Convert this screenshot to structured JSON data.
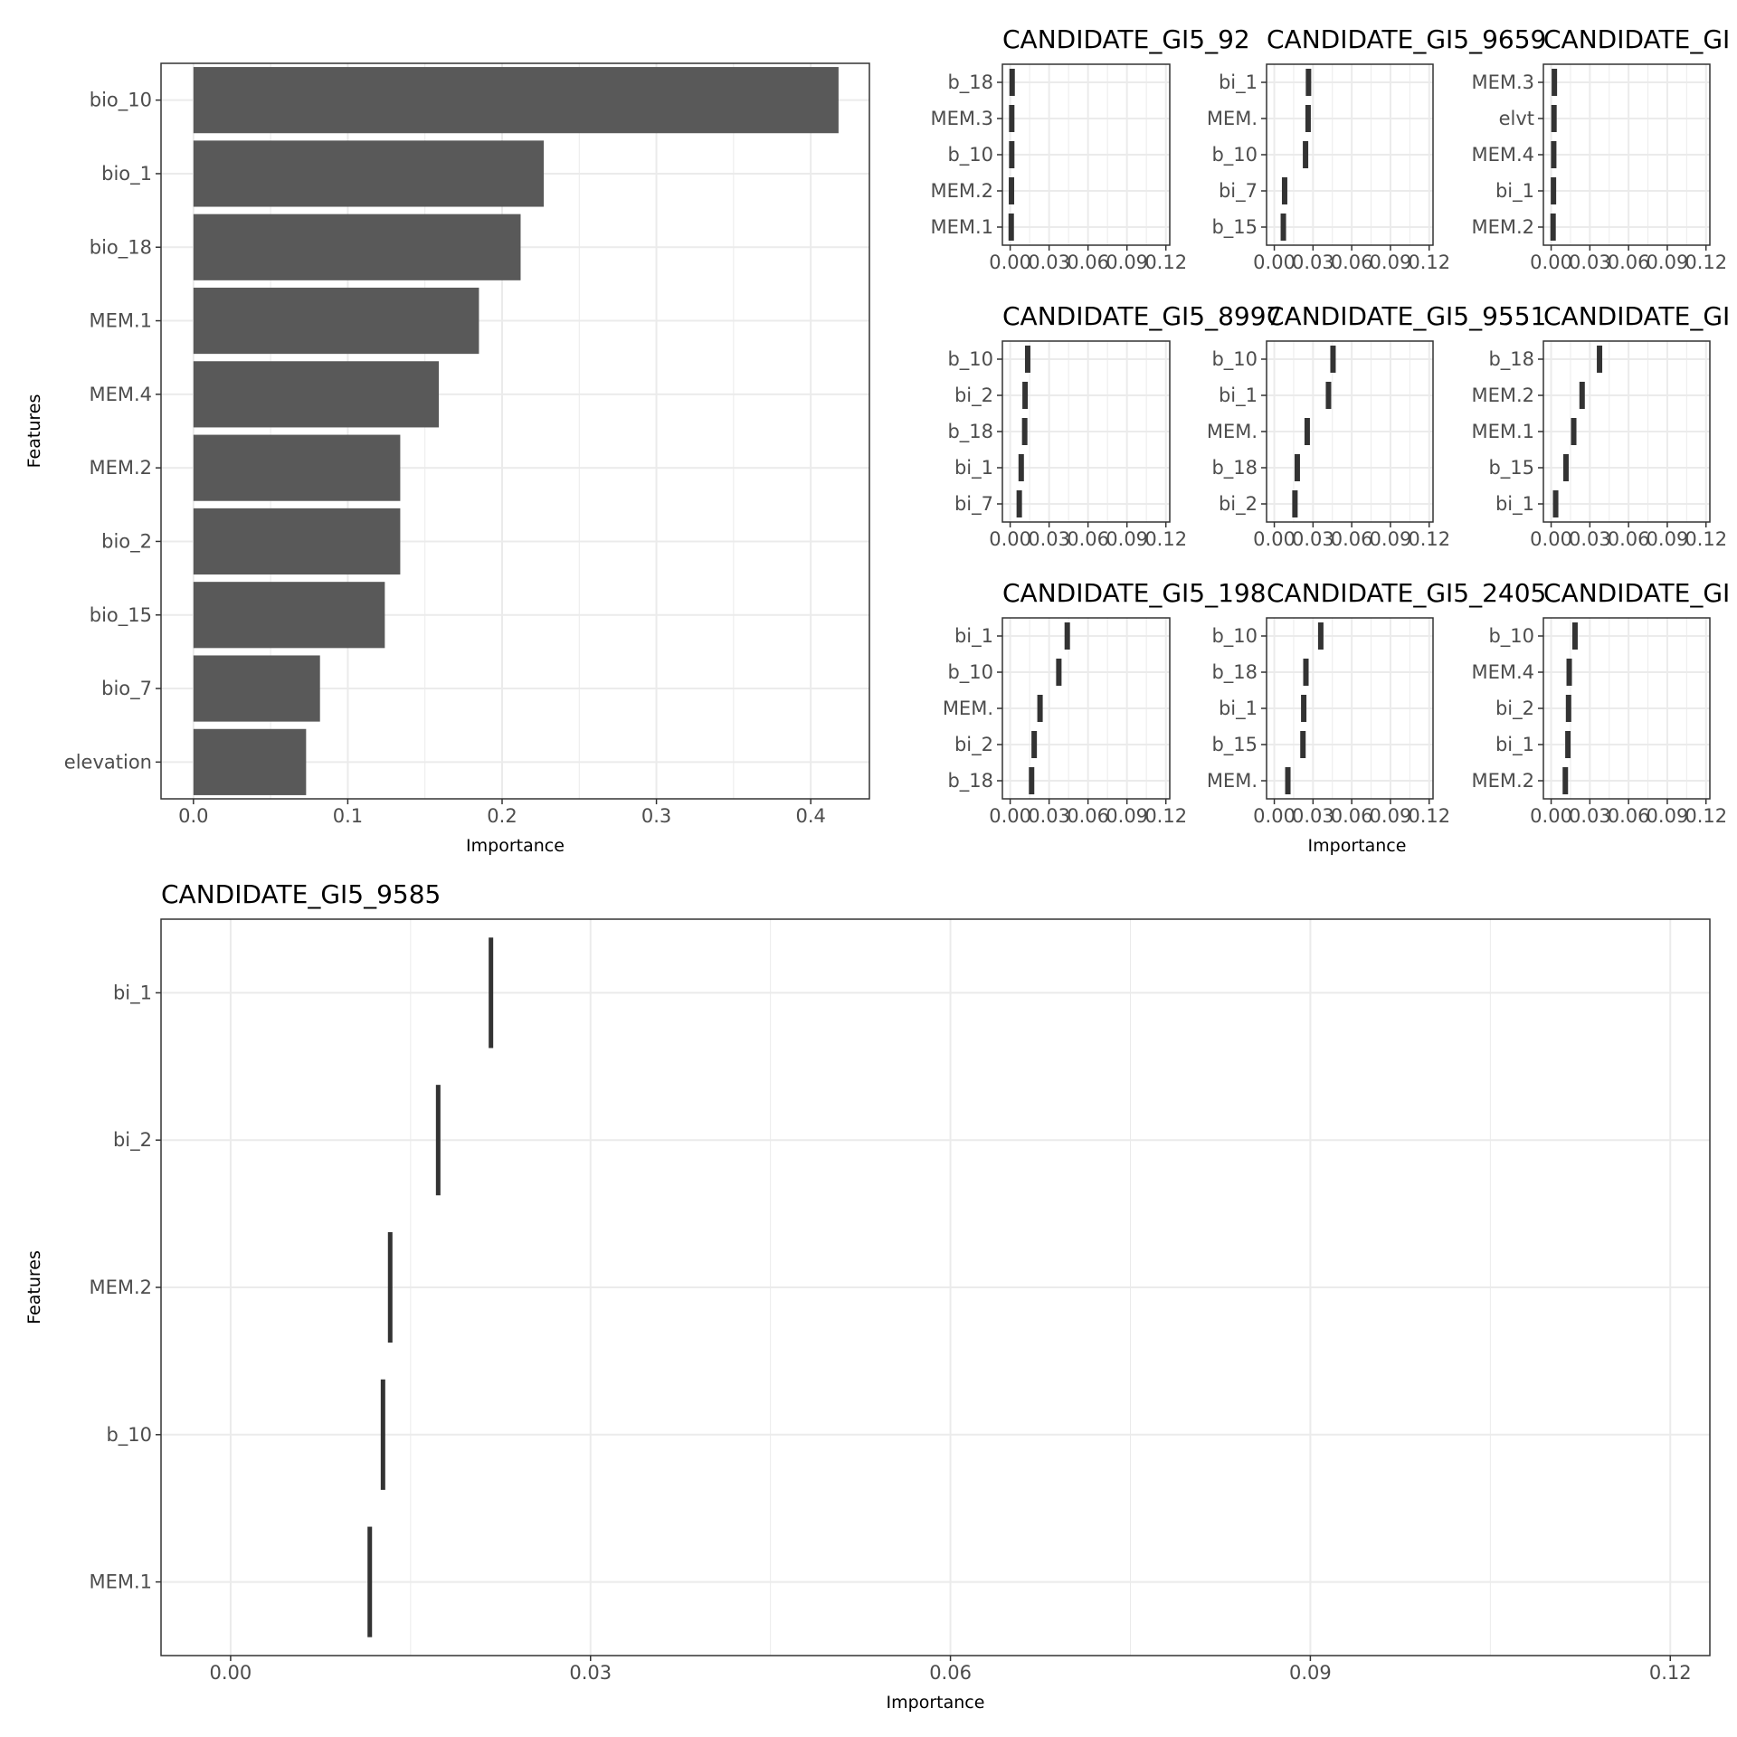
{
  "colors": {
    "bar": "#595959",
    "segment": "#333333",
    "grid": "#ebebeb",
    "border": "#333333",
    "tick_text": "#4d4d4d",
    "title_text": "#000000"
  },
  "chart_data": [
    {
      "type": "bar",
      "orientation": "horizontal",
      "title": "",
      "xlabel": "Importance",
      "ylabel": "Features",
      "xlim": [
        0,
        0.4
      ],
      "xticks": [
        "0.0",
        "0.1",
        "0.2",
        "0.3",
        "0.4"
      ],
      "categories": [
        "bio_10",
        "bio_1",
        "bio_18",
        "MEM.1",
        "MEM.4",
        "MEM.2",
        "bio_2",
        "bio_15",
        "bio_7",
        "elevation"
      ],
      "values": [
        0.418,
        0.227,
        0.212,
        0.185,
        0.159,
        0.134,
        0.134,
        0.124,
        0.082,
        0.073
      ],
      "grid": true
    },
    {
      "type": "bar",
      "orientation": "horizontal",
      "title": "CANDIDATE_GI5_92",
      "xlabel": "",
      "ylabel": "",
      "xlim": [
        0,
        0.12
      ],
      "xticks": [
        "0.00",
        "0.03",
        "0.06",
        "0.09",
        "0.12"
      ],
      "categories": [
        "b_18",
        "MEM.3",
        "b_10",
        "MEM.2",
        "MEM.1"
      ],
      "values": [
        0.0015,
        0.0012,
        0.0012,
        0.001,
        0.0008
      ],
      "grid": true
    },
    {
      "type": "bar",
      "orientation": "horizontal",
      "title": "CANDIDATE_GI5_9659",
      "xlabel": "",
      "ylabel": "",
      "xlim": [
        0,
        0.12
      ],
      "xticks": [
        "0.00",
        "0.03",
        "0.06",
        "0.09",
        "0.12"
      ],
      "categories": [
        "bi_1",
        "MEM.",
        "b_10",
        "bi_7",
        "b_15"
      ],
      "values": [
        0.0265,
        0.0262,
        0.0242,
        0.008,
        0.007
      ],
      "grid": true
    },
    {
      "type": "bar",
      "orientation": "horizontal",
      "title": "CANDIDATE_GI",
      "xlabel": "",
      "ylabel": "",
      "xlim": [
        0,
        0.12
      ],
      "xticks": [
        "0.00",
        "0.03",
        "0.06",
        "0.09",
        "0.12"
      ],
      "categories": [
        "MEM.3",
        "elvt",
        "MEM.4",
        "bi_1",
        "MEM.2"
      ],
      "values": [
        0.0025,
        0.0022,
        0.002,
        0.0018,
        0.0015
      ],
      "grid": true
    },
    {
      "type": "bar",
      "orientation": "horizontal",
      "title": "CANDIDATE_GI5_8997",
      "xlabel": "",
      "ylabel": "",
      "xlim": [
        0,
        0.12
      ],
      "xticks": [
        "0.00",
        "0.03",
        "0.06",
        "0.09",
        "0.12"
      ],
      "categories": [
        "b_10",
        "bi_2",
        "b_18",
        "bi_1",
        "bi_7"
      ],
      "values": [
        0.0135,
        0.0115,
        0.0112,
        0.0085,
        0.007
      ],
      "grid": true
    },
    {
      "type": "bar",
      "orientation": "horizontal",
      "title": "CANDIDATE_GI5_9551",
      "xlabel": "",
      "ylabel": "",
      "xlim": [
        0,
        0.12
      ],
      "xticks": [
        "0.00",
        "0.03",
        "0.06",
        "0.09",
        "0.12"
      ],
      "categories": [
        "b_10",
        "bi_1",
        "MEM.",
        "b_18",
        "bi_2"
      ],
      "values": [
        0.0455,
        0.042,
        0.0255,
        0.0178,
        0.016
      ],
      "grid": true
    },
    {
      "type": "bar",
      "orientation": "horizontal",
      "title": "CANDIDATE_GI",
      "xlabel": "",
      "ylabel": "",
      "xlim": [
        0,
        0.12
      ],
      "xticks": [
        "0.00",
        "0.03",
        "0.06",
        "0.09",
        "0.12"
      ],
      "categories": [
        "b_18",
        "MEM.2",
        "MEM.1",
        "b_15",
        "bi_1"
      ],
      "values": [
        0.0375,
        0.024,
        0.0175,
        0.0115,
        0.0035
      ],
      "grid": true
    },
    {
      "type": "bar",
      "orientation": "horizontal",
      "title": "CANDIDATE_GI5_198",
      "xlabel": "",
      "ylabel": "",
      "xlim": [
        0,
        0.12
      ],
      "xticks": [
        "0.00",
        "0.03",
        "0.06",
        "0.09",
        "0.12"
      ],
      "categories": [
        "bi_1",
        "b_10",
        "MEM.",
        "bi_2",
        "b_18"
      ],
      "values": [
        0.044,
        0.0375,
        0.023,
        0.0185,
        0.0165
      ],
      "grid": true
    },
    {
      "type": "bar",
      "orientation": "horizontal",
      "title": "CANDIDATE_GI5_2405",
      "xlabel": "Importance",
      "ylabel": "",
      "xlim": [
        0,
        0.12
      ],
      "xticks": [
        "0.00",
        "0.03",
        "0.06",
        "0.09",
        "0.12"
      ],
      "categories": [
        "b_10",
        "b_18",
        "bi_1",
        "b_15",
        "MEM."
      ],
      "values": [
        0.036,
        0.0245,
        0.0228,
        0.0222,
        0.0105
      ],
      "grid": true
    },
    {
      "type": "bar",
      "orientation": "horizontal",
      "title": "CANDIDATE_GI",
      "xlabel": "",
      "ylabel": "",
      "xlim": [
        0,
        0.12
      ],
      "xticks": [
        "0.00",
        "0.03",
        "0.06",
        "0.09",
        "0.12"
      ],
      "categories": [
        "b_10",
        "MEM.4",
        "bi_2",
        "bi_1",
        "MEM.2"
      ],
      "values": [
        0.0185,
        0.014,
        0.0135,
        0.013,
        0.011
      ],
      "grid": true
    },
    {
      "type": "bar",
      "orientation": "horizontal",
      "title": "CANDIDATE_GI5_9585",
      "xlabel": "Importance",
      "ylabel": "Features",
      "xlim": [
        0,
        0.12
      ],
      "xticks": [
        "0.00",
        "0.03",
        "0.06",
        "0.09",
        "0.12"
      ],
      "categories": [
        "bi_1",
        "bi_2",
        "MEM.2",
        "b_10",
        "MEM.1"
      ],
      "values": [
        0.0217,
        0.0173,
        0.0133,
        0.0127,
        0.0116
      ],
      "grid": true
    }
  ]
}
